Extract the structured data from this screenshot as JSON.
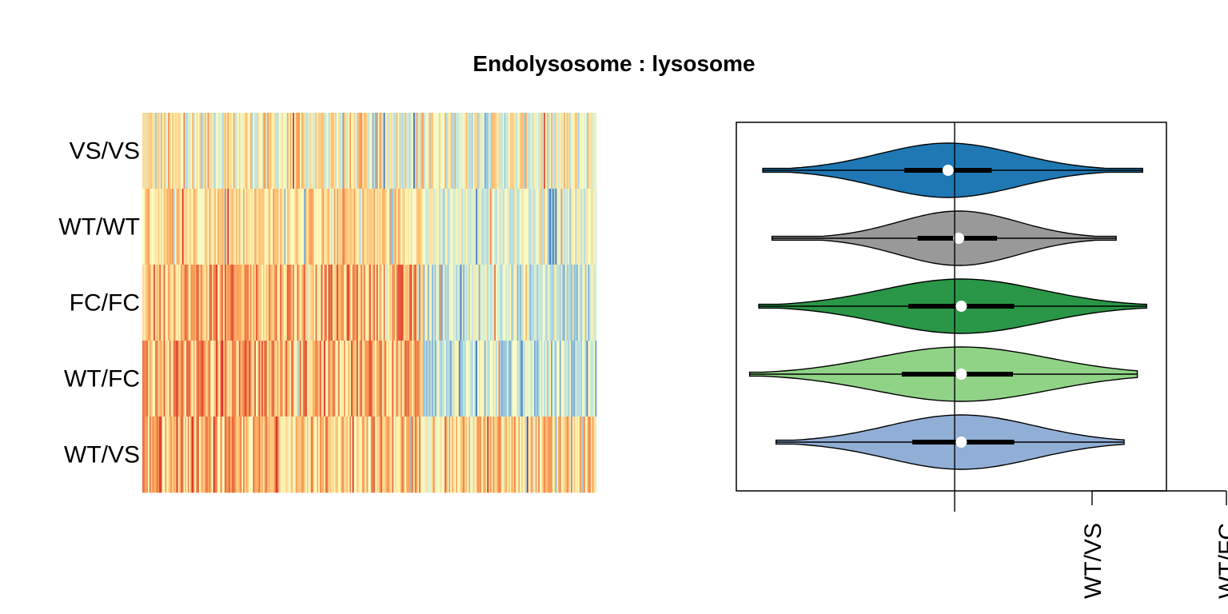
{
  "title": "Endolysosome : lysosome",
  "colors": {
    "heat_low": "#4575b4",
    "heat_mid": "#ffffbf",
    "heat_high": "#d73027",
    "frame": "#000000"
  },
  "chart_data": [
    {
      "type": "heatmap",
      "rows": [
        "VS/VS",
        "WT/WT",
        "FC/FC",
        "WT/FC",
        "WT/VS"
      ],
      "n_genes": 320,
      "value_range": [
        -1,
        1
      ],
      "row_profiles": [
        {
          "row": "VS/VS",
          "left_bias": 0.05,
          "right_bias": -0.05,
          "noise": 0.55
        },
        {
          "row": "WT/WT",
          "left_bias": 0.25,
          "right_bias": -0.15,
          "noise": 0.35
        },
        {
          "row": "FC/FC",
          "left_bias": 0.45,
          "right_bias": -0.25,
          "noise": 0.45
        },
        {
          "row": "WT/FC",
          "left_bias": 0.45,
          "right_bias": -0.35,
          "noise": 0.45
        },
        {
          "row": "WT/VS",
          "left_bias": 0.35,
          "right_bias": 0.25,
          "noise": 0.45
        }
      ]
    },
    {
      "type": "violin",
      "categories": [
        "VS/VS",
        "WT/WT",
        "FC/FC",
        "WT/FC",
        "WT/VS"
      ],
      "x_ticks": [
        "",
        "WT/VS",
        "WT/FC"
      ],
      "xlim": [
        -1.65,
        1.6
      ],
      "reference_line": 0,
      "series": [
        {
          "name": "VS/VS",
          "color": "#1f78b4",
          "min": -1.45,
          "max": 1.42,
          "q1": -0.38,
          "median": -0.05,
          "q3": 0.28,
          "spread": 0.52,
          "peak": 0.72
        },
        {
          "name": "WT/WT",
          "color": "#999999",
          "min": -1.38,
          "max": 1.22,
          "q1": -0.28,
          "median": 0.03,
          "q3": 0.32,
          "spread": 0.45,
          "peak": 0.72
        },
        {
          "name": "FC/FC",
          "color": "#2a9647",
          "min": -1.48,
          "max": 1.45,
          "q1": -0.35,
          "median": 0.05,
          "q3": 0.45,
          "spread": 0.6,
          "peak": 0.72
        },
        {
          "name": "WT/FC",
          "color": "#90d387",
          "min": -1.55,
          "max": 1.38,
          "q1": -0.4,
          "median": 0.05,
          "q3": 0.44,
          "spread": 0.65,
          "peak": 0.72
        },
        {
          "name": "WT/VS",
          "color": "#91aed6",
          "min": -1.35,
          "max": 1.28,
          "q1": -0.32,
          "median": 0.05,
          "q3": 0.45,
          "spread": 0.55,
          "peak": 0.72
        }
      ]
    }
  ]
}
